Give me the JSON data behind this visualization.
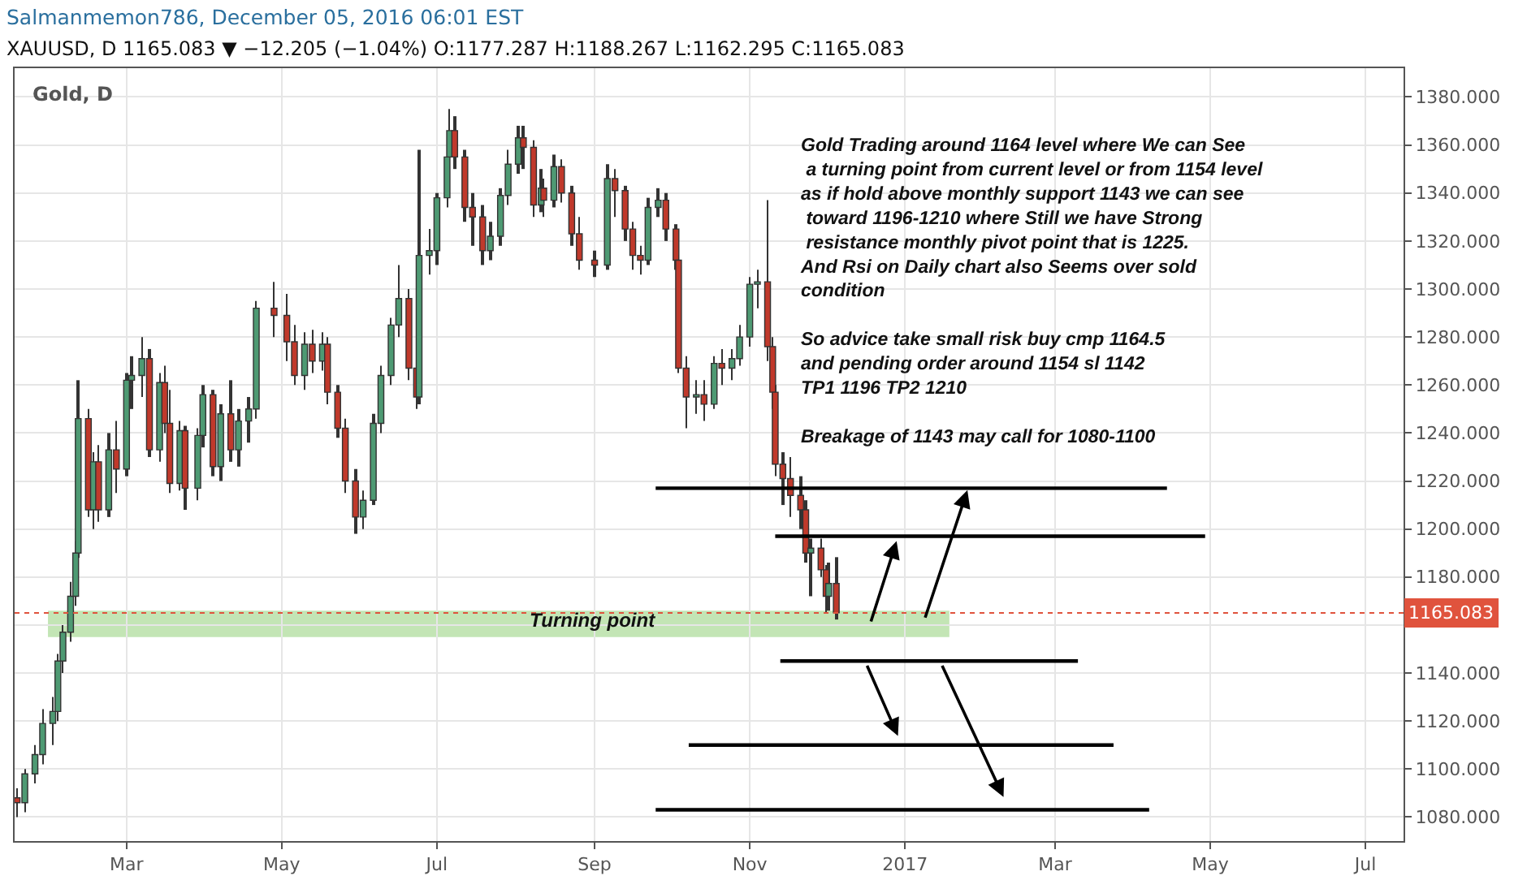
{
  "chart_data": {
    "type": "candlestick",
    "title": "Salmanmemon786, December 05, 2016 06:01 EST",
    "subtitle": "XAUUSD, D 1165.083 ▼ −12.205 (−1.04%) O:1177.287 H:1188.267 L:1162.295 C:1165.083",
    "x": [
      "2016-01-18",
      "2016-01-21",
      "2016-01-25",
      "2016-01-28",
      "2016-02-01",
      "2016-02-03",
      "2016-02-05",
      "2016-02-08",
      "2016-02-10",
      "2016-02-11",
      "2016-02-15",
      "2016-02-17",
      "2016-02-19",
      "2016-02-23",
      "2016-02-26",
      "2016-03-01",
      "2016-03-03",
      "2016-03-07",
      "2016-03-10",
      "2016-03-14",
      "2016-03-16",
      "2016-03-18",
      "2016-03-22",
      "2016-03-24",
      "2016-03-29",
      "2016-03-31",
      "2016-04-04",
      "2016-04-07",
      "2016-04-11",
      "2016-04-14",
      "2016-04-18",
      "2016-04-21",
      "2016-04-28",
      "2016-05-03",
      "2016-05-06",
      "2016-05-10",
      "2016-05-13",
      "2016-05-17",
      "2016-05-19",
      "2016-05-23",
      "2016-05-26",
      "2016-05-30",
      "2016-06-02",
      "2016-06-06",
      "2016-06-09",
      "2016-06-13",
      "2016-06-16",
      "2016-06-20",
      "2016-06-23",
      "2016-06-24",
      "2016-06-28",
      "2016-07-01",
      "2016-07-05",
      "2016-07-06",
      "2016-07-08",
      "2016-07-12",
      "2016-07-15",
      "2016-07-19",
      "2016-07-22",
      "2016-07-26",
      "2016-07-29",
      "2016-08-02",
      "2016-08-04",
      "2016-08-08",
      "2016-08-11",
      "2016-08-12",
      "2016-08-16",
      "2016-08-19",
      "2016-08-23",
      "2016-08-26",
      "2016-09-01",
      "2016-09-06",
      "2016-09-09",
      "2016-09-13",
      "2016-09-16",
      "2016-09-19",
      "2016-09-22",
      "2016-09-26",
      "2016-09-29",
      "2016-10-03",
      "2016-10-04",
      "2016-10-07",
      "2016-10-11",
      "2016-10-14",
      "2016-10-18",
      "2016-10-21",
      "2016-10-25",
      "2016-10-28",
      "2016-11-01",
      "2016-11-04",
      "2016-11-08",
      "2016-11-10",
      "2016-11-11",
      "2016-11-14",
      "2016-11-17",
      "2016-11-21",
      "2016-11-23",
      "2016-11-25",
      "2016-11-29",
      "2016-12-01",
      "2016-12-02",
      "2016-12-05"
    ],
    "ohlc": [
      [
        1088,
        1092,
        1080,
        1086
      ],
      [
        1086,
        1100,
        1082,
        1098
      ],
      [
        1098,
        1110,
        1094,
        1106
      ],
      [
        1106,
        1125,
        1102,
        1119
      ],
      [
        1119,
        1130,
        1110,
        1124
      ],
      [
        1124,
        1148,
        1120,
        1145
      ],
      [
        1145,
        1160,
        1140,
        1157
      ],
      [
        1157,
        1178,
        1153,
        1172
      ],
      [
        1172,
        1195,
        1168,
        1190
      ],
      [
        1190,
        1262,
        1188,
        1246
      ],
      [
        1246,
        1250,
        1205,
        1208
      ],
      [
        1208,
        1232,
        1200,
        1228
      ],
      [
        1228,
        1235,
        1203,
        1208
      ],
      [
        1208,
        1240,
        1205,
        1233
      ],
      [
        1233,
        1245,
        1215,
        1225
      ],
      [
        1225,
        1265,
        1222,
        1262
      ],
      [
        1262,
        1272,
        1250,
        1264
      ],
      [
        1264,
        1280,
        1255,
        1271
      ],
      [
        1271,
        1275,
        1230,
        1233
      ],
      [
        1233,
        1265,
        1228,
        1261
      ],
      [
        1261,
        1268,
        1240,
        1244
      ],
      [
        1244,
        1258,
        1215,
        1219
      ],
      [
        1219,
        1245,
        1216,
        1241
      ],
      [
        1241,
        1243,
        1208,
        1217
      ],
      [
        1217,
        1242,
        1212,
        1239
      ],
      [
        1239,
        1260,
        1234,
        1256
      ],
      [
        1256,
        1258,
        1222,
        1226
      ],
      [
        1226,
        1252,
        1220,
        1248
      ],
      [
        1248,
        1262,
        1228,
        1233
      ],
      [
        1233,
        1250,
        1226,
        1245
      ],
      [
        1245,
        1255,
        1236,
        1250
      ],
      [
        1250,
        1295,
        1246,
        1292
      ],
      [
        1292,
        1303,
        1280,
        1289
      ],
      [
        1289,
        1298,
        1270,
        1278
      ],
      [
        1278,
        1285,
        1260,
        1264
      ],
      [
        1264,
        1282,
        1258,
        1277
      ],
      [
        1277,
        1283,
        1265,
        1270
      ],
      [
        1270,
        1282,
        1266,
        1277
      ],
      [
        1277,
        1280,
        1252,
        1257
      ],
      [
        1257,
        1260,
        1238,
        1242
      ],
      [
        1242,
        1246,
        1215,
        1220
      ],
      [
        1220,
        1225,
        1198,
        1205
      ],
      [
        1205,
        1216,
        1200,
        1212
      ],
      [
        1212,
        1248,
        1210,
        1244
      ],
      [
        1244,
        1268,
        1240,
        1264
      ],
      [
        1264,
        1288,
        1260,
        1285
      ],
      [
        1285,
        1310,
        1280,
        1296
      ],
      [
        1296,
        1300,
        1262,
        1267
      ],
      [
        1267,
        1270,
        1250,
        1255
      ],
      [
        1255,
        1358,
        1252,
        1314
      ],
      [
        1314,
        1325,
        1306,
        1316
      ],
      [
        1316,
        1340,
        1310,
        1338
      ],
      [
        1338,
        1360,
        1334,
        1355
      ],
      [
        1355,
        1375,
        1350,
        1366
      ],
      [
        1366,
        1372,
        1350,
        1355
      ],
      [
        1355,
        1358,
        1328,
        1334
      ],
      [
        1334,
        1340,
        1318,
        1330
      ],
      [
        1330,
        1335,
        1310,
        1316
      ],
      [
        1316,
        1328,
        1312,
        1322
      ],
      [
        1322,
        1342,
        1318,
        1339
      ],
      [
        1339,
        1358,
        1335,
        1352
      ],
      [
        1352,
        1368,
        1348,
        1363
      ],
      [
        1363,
        1368,
        1350,
        1359
      ],
      [
        1359,
        1362,
        1330,
        1335
      ],
      [
        1335,
        1350,
        1332,
        1342
      ],
      [
        1342,
        1346,
        1330,
        1337
      ],
      [
        1337,
        1356,
        1334,
        1351
      ],
      [
        1351,
        1354,
        1336,
        1340
      ],
      [
        1340,
        1343,
        1318,
        1323
      ],
      [
        1323,
        1330,
        1308,
        1312
      ],
      [
        1312,
        1316,
        1305,
        1310
      ],
      [
        1310,
        1352,
        1308,
        1346
      ],
      [
        1346,
        1350,
        1330,
        1341
      ],
      [
        1341,
        1343,
        1320,
        1325
      ],
      [
        1325,
        1328,
        1308,
        1314
      ],
      [
        1314,
        1318,
        1306,
        1312
      ],
      [
        1312,
        1338,
        1310,
        1334
      ],
      [
        1334,
        1342,
        1330,
        1337
      ],
      [
        1337,
        1340,
        1320,
        1325
      ],
      [
        1325,
        1327,
        1308,
        1312
      ],
      [
        1312,
        1314,
        1265,
        1267
      ],
      [
        1267,
        1272,
        1242,
        1255
      ],
      [
        1255,
        1262,
        1248,
        1256
      ],
      [
        1256,
        1262,
        1245,
        1252
      ],
      [
        1252,
        1272,
        1250,
        1269
      ],
      [
        1269,
        1275,
        1260,
        1267
      ],
      [
        1267,
        1275,
        1262,
        1271
      ],
      [
        1271,
        1285,
        1268,
        1280
      ],
      [
        1280,
        1305,
        1276,
        1302
      ],
      [
        1302,
        1308,
        1292,
        1303
      ],
      [
        1303,
        1337,
        1270,
        1276
      ],
      [
        1276,
        1280,
        1250,
        1257
      ],
      [
        1257,
        1260,
        1222,
        1227
      ],
      [
        1227,
        1232,
        1210,
        1221
      ],
      [
        1221,
        1230,
        1205,
        1214
      ],
      [
        1214,
        1222,
        1200,
        1208
      ],
      [
        1208,
        1212,
        1186,
        1190
      ],
      [
        1190,
        1196,
        1172,
        1192
      ],
      [
        1192,
        1196,
        1180,
        1183
      ],
      [
        1183,
        1185,
        1165,
        1172
      ],
      [
        1172,
        1186,
        1166,
        1177.287
      ],
      [
        1177.287,
        1188.267,
        1162.295,
        1165.083
      ]
    ],
    "colors": [
      "#c0392b",
      "#4e9a73",
      "#4e9a73",
      "#4e9a73",
      "#4e9a73",
      "#4e9a73",
      "#4e9a73",
      "#4e9a73",
      "#4e9a73",
      "#4e9a73",
      "#c0392b",
      "#4e9a73",
      "#c0392b",
      "#4e9a73",
      "#c0392b",
      "#4e9a73",
      "#4e9a73",
      "#4e9a73",
      "#c0392b",
      "#4e9a73",
      "#c0392b",
      "#c0392b",
      "#4e9a73",
      "#c0392b",
      "#4e9a73",
      "#4e9a73",
      "#c0392b",
      "#4e9a73",
      "#c0392b",
      "#4e9a73",
      "#4e9a73",
      "#4e9a73",
      "#c0392b",
      "#c0392b",
      "#c0392b",
      "#4e9a73",
      "#c0392b",
      "#4e9a73",
      "#c0392b",
      "#c0392b",
      "#c0392b",
      "#c0392b",
      "#4e9a73",
      "#4e9a73",
      "#4e9a73",
      "#4e9a73",
      "#4e9a73",
      "#c0392b",
      "#c0392b",
      "#4e9a73",
      "#4e9a73",
      "#4e9a73",
      "#4e9a73",
      "#4e9a73",
      "#c0392b",
      "#c0392b",
      "#c0392b",
      "#c0392b",
      "#4e9a73",
      "#4e9a73",
      "#4e9a73",
      "#4e9a73",
      "#c0392b",
      "#c0392b",
      "#4e9a73",
      "#c0392b",
      "#4e9a73",
      "#c0392b",
      "#c0392b",
      "#c0392b",
      "#c0392b",
      "#4e9a73",
      "#c0392b",
      "#c0392b",
      "#c0392b",
      "#c0392b",
      "#4e9a73",
      "#4e9a73",
      "#c0392b",
      "#c0392b",
      "#c0392b",
      "#c0392b",
      "#4e9a73",
      "#c0392b",
      "#4e9a73",
      "#c0392b",
      "#4e9a73",
      "#4e9a73",
      "#4e9a73",
      "#4e9a73",
      "#c0392b",
      "#c0392b",
      "#c0392b",
      "#c0392b",
      "#c0392b",
      "#c0392b",
      "#c0392b",
      "#4e9a73",
      "#c0392b",
      "#c0392b",
      "#4e9a73",
      "#c0392b"
    ],
    "series": [
      {
        "type": "line",
        "color": "#000000",
        "x": [
          "2016-09-25",
          "2017-04-14"
        ],
        "values": [
          1217,
          1217
        ]
      },
      {
        "type": "line",
        "color": "#000000",
        "x": [
          "2016-11-11",
          "2017-04-29"
        ],
        "values": [
          1197,
          1197
        ]
      },
      {
        "type": "line",
        "color": "#000000",
        "x": [
          "2016-11-13",
          "2017-03-10"
        ],
        "values": [
          1145,
          1145
        ]
      },
      {
        "type": "line",
        "color": "#000000",
        "x": [
          "2016-10-08",
          "2017-03-24"
        ],
        "values": [
          1110,
          1110
        ]
      },
      {
        "type": "line",
        "color": "#000000",
        "x": [
          "2016-09-25",
          "2017-04-07"
        ],
        "values": [
          1083,
          1083
        ]
      }
    ],
    "bands": [
      {
        "axis": "y",
        "from": 1155,
        "to": 1166,
        "color": "#b9e0a8"
      }
    ],
    "ref_lines": [
      {
        "axis": "y",
        "value": 1165.083,
        "label": "1165.083",
        "color": "#e0533d",
        "line_style": "dotted"
      }
    ],
    "annotations": [
      "Gold, D",
      "Gold Trading around 1164 level where We can See\n a turning point from current level or from 1154 level\nas if hold above monthly support 1143 we can see\n toward 1196-1210 where Still we have Strong\n resistance monthly pivot point that is 1225.\nAnd Rsi on Daily chart also Seems over sold\ncondition\n\nSo advice take small risk buy cmp 1164.5\nand pending order around 1154 sl 1142\nTP1 1196 TP2 1210\n\nBreakage of 1143 may call for 1080-1100",
      "Turning point"
    ],
    "xlim": [
      "2016-01-17",
      "2017-07-16"
    ],
    "xticks": [
      {
        "value": "2016-03-01",
        "label": "Mar"
      },
      {
        "value": "2016-05-01",
        "label": "May"
      },
      {
        "value": "2016-07-01",
        "label": "Jul"
      },
      {
        "value": "2016-09-01",
        "label": "Sep"
      },
      {
        "value": "2016-11-01",
        "label": "Nov"
      },
      {
        "value": "2017-01-01",
        "label": "2017"
      },
      {
        "value": "2017-03-01",
        "label": "Mar"
      },
      {
        "value": "2017-05-01",
        "label": "May"
      },
      {
        "value": "2017-07-01",
        "label": "Jul"
      }
    ],
    "ylim": [
      1070,
      1392
    ],
    "yticks": [
      {
        "value": 1080,
        "label": "1080.000"
      },
      {
        "value": 1100,
        "label": "1100.000"
      },
      {
        "value": 1120,
        "label": "1120.000"
      },
      {
        "value": 1140,
        "label": "1140.000"
      },
      {
        "value": 1160,
        "label": null
      },
      {
        "value": 1180,
        "label": "1180.000"
      },
      {
        "value": 1200,
        "label": "1200.000"
      },
      {
        "value": 1220,
        "label": "1220.000"
      },
      {
        "value": 1240,
        "label": "1240.000"
      },
      {
        "value": 1260,
        "label": "1260.000"
      },
      {
        "value": 1280,
        "label": "1280.000"
      },
      {
        "value": 1300,
        "label": "1300.000"
      },
      {
        "value": 1320,
        "label": "1320.000"
      },
      {
        "value": 1340,
        "label": "1340.000"
      },
      {
        "value": 1360,
        "label": "1360.000"
      },
      {
        "value": 1380,
        "label": "1380.000"
      }
    ],
    "grid": true
  }
}
